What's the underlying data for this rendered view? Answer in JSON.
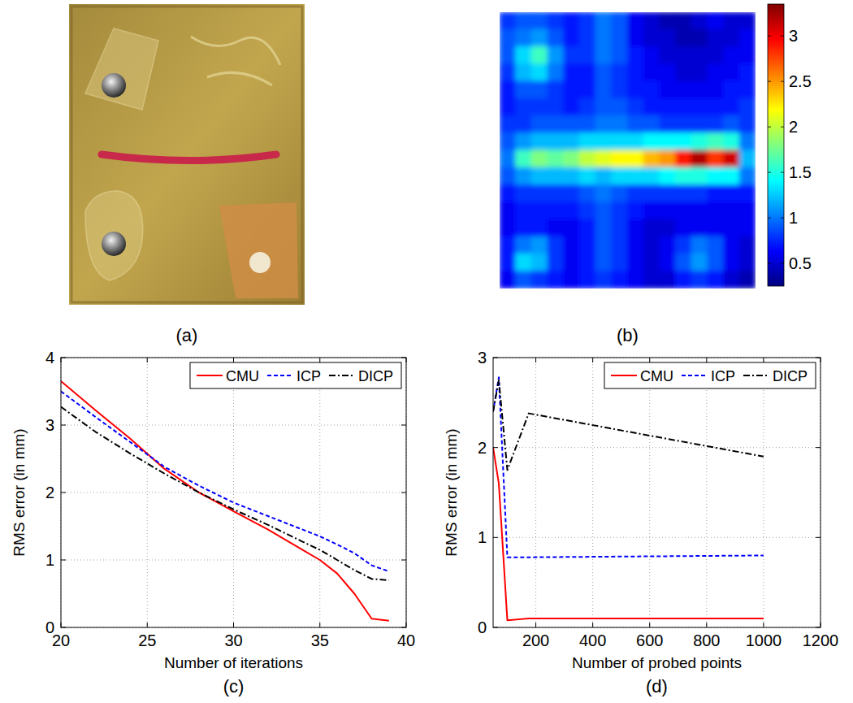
{
  "chart_data": [
    {
      "type": "image",
      "label": "(a)"
    },
    {
      "type": "heatmap",
      "label": "(b)",
      "tick_labels": false,
      "cells": [
        [
          0.8,
          0.9,
          0.9,
          0.8,
          0.7,
          0.8,
          1.0,
          0.9,
          0.6,
          0.5,
          0.4,
          0.4,
          0.5,
          0.6,
          0.5,
          0.5
        ],
        [
          0.9,
          1.0,
          1.1,
          0.9,
          0.7,
          0.8,
          1.0,
          0.9,
          0.6,
          0.5,
          0.5,
          0.4,
          0.4,
          0.5,
          0.5,
          0.6
        ],
        [
          0.9,
          1.3,
          1.6,
          1.1,
          0.8,
          0.8,
          1.0,
          0.9,
          0.7,
          0.6,
          0.5,
          0.5,
          0.5,
          0.5,
          0.6,
          0.6
        ],
        [
          0.8,
          1.2,
          1.3,
          1.0,
          0.7,
          0.7,
          0.9,
          0.8,
          0.7,
          0.6,
          0.6,
          0.5,
          0.5,
          0.6,
          0.6,
          0.7
        ],
        [
          0.7,
          0.9,
          0.9,
          0.8,
          0.7,
          0.7,
          0.9,
          0.8,
          0.7,
          0.7,
          0.6,
          0.6,
          0.6,
          0.6,
          0.7,
          0.7
        ],
        [
          0.7,
          0.8,
          0.8,
          0.8,
          0.7,
          0.8,
          0.9,
          0.9,
          0.8,
          0.7,
          0.7,
          0.7,
          0.7,
          0.7,
          0.7,
          0.8
        ],
        [
          0.8,
          0.8,
          0.9,
          0.9,
          0.9,
          0.9,
          1.0,
          1.0,
          0.9,
          0.9,
          0.8,
          0.8,
          0.8,
          0.8,
          0.9,
          0.8
        ],
        [
          0.9,
          1.1,
          1.2,
          1.2,
          1.2,
          1.3,
          1.3,
          1.3,
          1.3,
          1.4,
          1.4,
          1.4,
          1.5,
          1.6,
          1.5,
          1.0
        ],
        [
          1.0,
          1.6,
          1.8,
          1.7,
          1.8,
          2.0,
          2.1,
          2.2,
          2.2,
          2.4,
          2.5,
          2.9,
          3.2,
          2.8,
          3.1,
          1.2
        ],
        [
          0.9,
          1.1,
          1.2,
          1.2,
          1.2,
          1.3,
          1.2,
          1.3,
          1.3,
          1.3,
          1.4,
          1.5,
          1.5,
          1.4,
          1.4,
          1.0
        ],
        [
          0.7,
          0.8,
          0.8,
          0.8,
          0.8,
          0.9,
          1.0,
          0.9,
          0.8,
          0.8,
          0.8,
          0.8,
          0.8,
          0.7,
          0.7,
          0.7
        ],
        [
          0.6,
          0.7,
          0.7,
          0.7,
          0.7,
          0.8,
          0.9,
          0.8,
          0.7,
          0.6,
          0.6,
          0.6,
          0.6,
          0.6,
          0.6,
          0.6
        ],
        [
          0.6,
          0.7,
          0.7,
          0.6,
          0.6,
          0.7,
          0.9,
          0.8,
          0.6,
          0.5,
          0.5,
          0.6,
          0.6,
          0.6,
          0.6,
          0.6
        ],
        [
          0.7,
          1.0,
          1.1,
          0.8,
          0.6,
          0.7,
          0.9,
          0.8,
          0.6,
          0.5,
          0.6,
          0.8,
          1.0,
          0.9,
          0.6,
          0.5
        ],
        [
          0.7,
          1.3,
          1.2,
          0.8,
          0.6,
          0.7,
          0.9,
          0.8,
          0.6,
          0.5,
          0.6,
          0.9,
          1.1,
          0.9,
          0.6,
          0.5
        ],
        [
          0.6,
          0.9,
          0.8,
          0.7,
          0.6,
          0.7,
          0.8,
          0.7,
          0.6,
          0.5,
          0.5,
          0.7,
          0.8,
          0.7,
          0.5,
          0.4
        ]
      ],
      "colorbar": {
        "range": [
          0.25,
          3.35
        ],
        "ticks": [
          0.5,
          1,
          1.5,
          2,
          2.5,
          3
        ]
      }
    },
    {
      "type": "line",
      "label": "(c)",
      "xlabel": "Number of iterations",
      "ylabel": "RMS error (in mm)",
      "x": [
        20,
        22,
        24,
        26,
        28,
        30,
        32,
        34,
        35,
        36,
        37,
        38,
        39
      ],
      "xlim": [
        20,
        40
      ],
      "xticks": [
        20,
        25,
        30,
        35,
        40
      ],
      "ylim": [
        0,
        4
      ],
      "yticks": [
        0,
        1,
        2,
        3,
        4
      ],
      "grid": true,
      "legend": "upper right",
      "series": [
        {
          "name": "CMU",
          "color": "#ff0000",
          "line_style": "solid",
          "values": [
            3.65,
            3.22,
            2.8,
            2.35,
            2.0,
            1.72,
            1.45,
            1.15,
            1.0,
            0.8,
            0.5,
            0.13,
            0.1
          ]
        },
        {
          "name": "ICP",
          "color": "#0000ff",
          "line_style": "dashed",
          "values": [
            3.5,
            3.12,
            2.75,
            2.38,
            2.1,
            1.85,
            1.65,
            1.45,
            1.35,
            1.23,
            1.1,
            0.92,
            0.83
          ]
        },
        {
          "name": "DICP",
          "color": "#000000",
          "line_style": "dashdot",
          "values": [
            3.27,
            2.9,
            2.58,
            2.28,
            2.0,
            1.75,
            1.52,
            1.27,
            1.15,
            1.0,
            0.85,
            0.72,
            0.7
          ]
        }
      ]
    },
    {
      "type": "line",
      "label": "(d)",
      "xlabel": "Number of probed points",
      "ylabel": "RMS error (in mm)",
      "x": [
        50,
        70,
        100,
        175,
        1000
      ],
      "xlim": [
        50,
        1200
      ],
      "xticks": [
        200,
        400,
        600,
        800,
        1000,
        1200
      ],
      "ylim": [
        0,
        3
      ],
      "yticks": [
        0,
        1,
        2,
        3
      ],
      "grid": true,
      "legend": "upper right",
      "series": [
        {
          "name": "CMU",
          "color": "#ff0000",
          "line_style": "solid",
          "values": [
            2.0,
            1.6,
            0.08,
            0.1,
            0.1
          ]
        },
        {
          "name": "ICP",
          "color": "#0000ff",
          "line_style": "dashed",
          "values": [
            2.4,
            2.78,
            0.78,
            0.78,
            0.8
          ]
        },
        {
          "name": "DICP",
          "color": "#000000",
          "line_style": "dashdot",
          "values": [
            2.4,
            2.75,
            1.75,
            2.38,
            1.9
          ]
        }
      ]
    }
  ]
}
